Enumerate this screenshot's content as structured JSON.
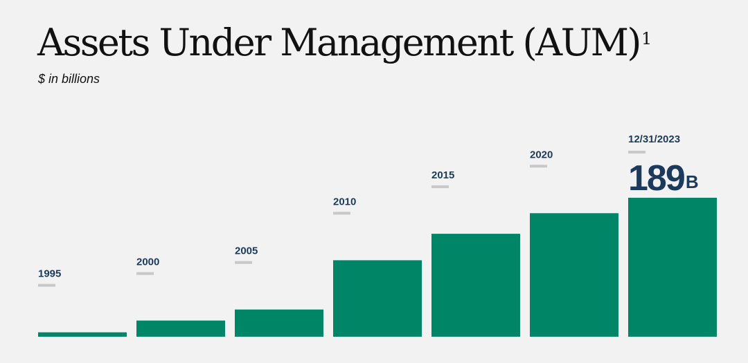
{
  "title": "Assets Under Management (AUM)",
  "title_footnote": "1",
  "subtitle": "$ in billions",
  "colors": {
    "bar": "#008566",
    "label": "#1b3a5c",
    "tick": "#c8c8c8",
    "background": "#f2f2f2"
  },
  "chart_data": {
    "type": "bar",
    "categories": [
      "1995",
      "2000",
      "2005",
      "2010",
      "2015",
      "2020",
      "12/31/2023"
    ],
    "values": [
      6,
      22,
      37,
      104,
      140,
      168,
      189
    ],
    "ylim": [
      0,
      189
    ],
    "grid": false,
    "legend": "none",
    "annotations": [
      {
        "category": "12/31/2023",
        "value_text": "189",
        "unit": "B"
      }
    ]
  }
}
